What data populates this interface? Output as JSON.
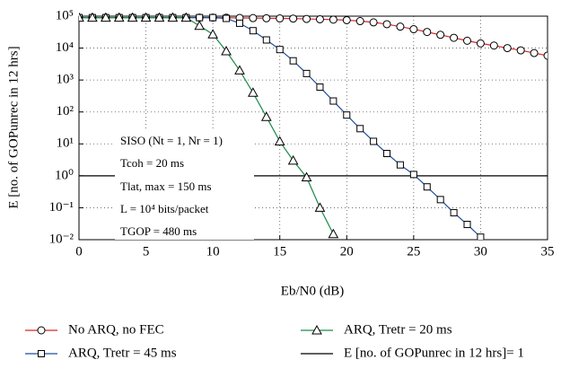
{
  "chart_data": {
    "type": "line",
    "x_label": "Eb/N0 (dB)",
    "y_label": "E [no. of GOPunrec in 12 hrs]",
    "log_y": true,
    "grid": true,
    "xlim": [
      0,
      35
    ],
    "xticks": [
      0,
      5,
      10,
      15,
      20,
      25,
      30,
      35
    ],
    "ylim": [
      0.01,
      100000
    ],
    "yticks": [
      {
        "value": 0.01,
        "label": "10⁻²"
      },
      {
        "value": 0.1,
        "label": "10⁻¹"
      },
      {
        "value": 1,
        "label": "10⁰"
      },
      {
        "value": 10,
        "label": "10¹"
      },
      {
        "value": 100,
        "label": "10²"
      },
      {
        "value": 1000,
        "label": "10³"
      },
      {
        "value": 10000,
        "label": "10⁴"
      },
      {
        "value": 100000,
        "label": "10⁵"
      }
    ],
    "x": [
      0,
      1,
      2,
      3,
      4,
      5,
      6,
      7,
      8,
      9,
      10,
      11,
      12,
      13,
      14,
      15,
      16,
      17,
      18,
      19,
      20,
      21,
      22,
      23,
      24,
      25,
      26,
      27,
      28,
      29,
      30,
      31,
      32,
      33,
      34,
      35
    ],
    "series": [
      {
        "name": "No ARQ, no FEC",
        "color": "#d62728",
        "marker": "circle",
        "values": [
          90000,
          90000,
          90000,
          90000,
          90000,
          90000,
          90000,
          90000,
          90000,
          90000,
          90000,
          89000,
          88000,
          87000,
          86000,
          85000,
          84000,
          82000,
          80000,
          78000,
          75000,
          70000,
          64000,
          56000,
          47000,
          39000,
          32000,
          26000,
          21000,
          17000,
          14000,
          12000,
          10000,
          8500,
          7000,
          5800
        ]
      },
      {
        "name": "ARQ, Tretr = 45 ms",
        "color": "#1f4e9c",
        "marker": "square",
        "values": [
          90000,
          90000,
          90000,
          90000,
          90000,
          90000,
          90000,
          90000,
          90000,
          90000,
          90000,
          85000,
          60000,
          35000,
          18000,
          9000,
          4000,
          1600,
          600,
          220,
          80,
          30,
          12,
          5,
          2.2,
          1.1,
          0.45,
          0.18,
          0.07,
          0.03,
          0.012,
          null,
          null,
          null,
          null,
          null
        ]
      },
      {
        "name": "ARQ, Tretr = 20 ms",
        "color": "#1a8a4a",
        "marker": "triangle",
        "values": [
          90000,
          90000,
          90000,
          90000,
          90000,
          90000,
          90000,
          90000,
          90000,
          50000,
          27000,
          8000,
          2000,
          400,
          70,
          12,
          3,
          0.9,
          0.1,
          0.015,
          null,
          null,
          null,
          null,
          null,
          null,
          null,
          null,
          null,
          null,
          null,
          null,
          null,
          null,
          null,
          null
        ]
      }
    ],
    "reference_line": {
      "name": "E [no. of GOPunrec in 12 hrs]= 1",
      "value": 1,
      "color": "#000000"
    },
    "annotations": [
      "SISO (Nt = 1, Nr = 1)",
      "Tcoh = 20 ms",
      "Tlat, max = 150 ms",
      "L = 10⁴ bits/packet",
      "TGOP = 480 ms"
    ]
  }
}
